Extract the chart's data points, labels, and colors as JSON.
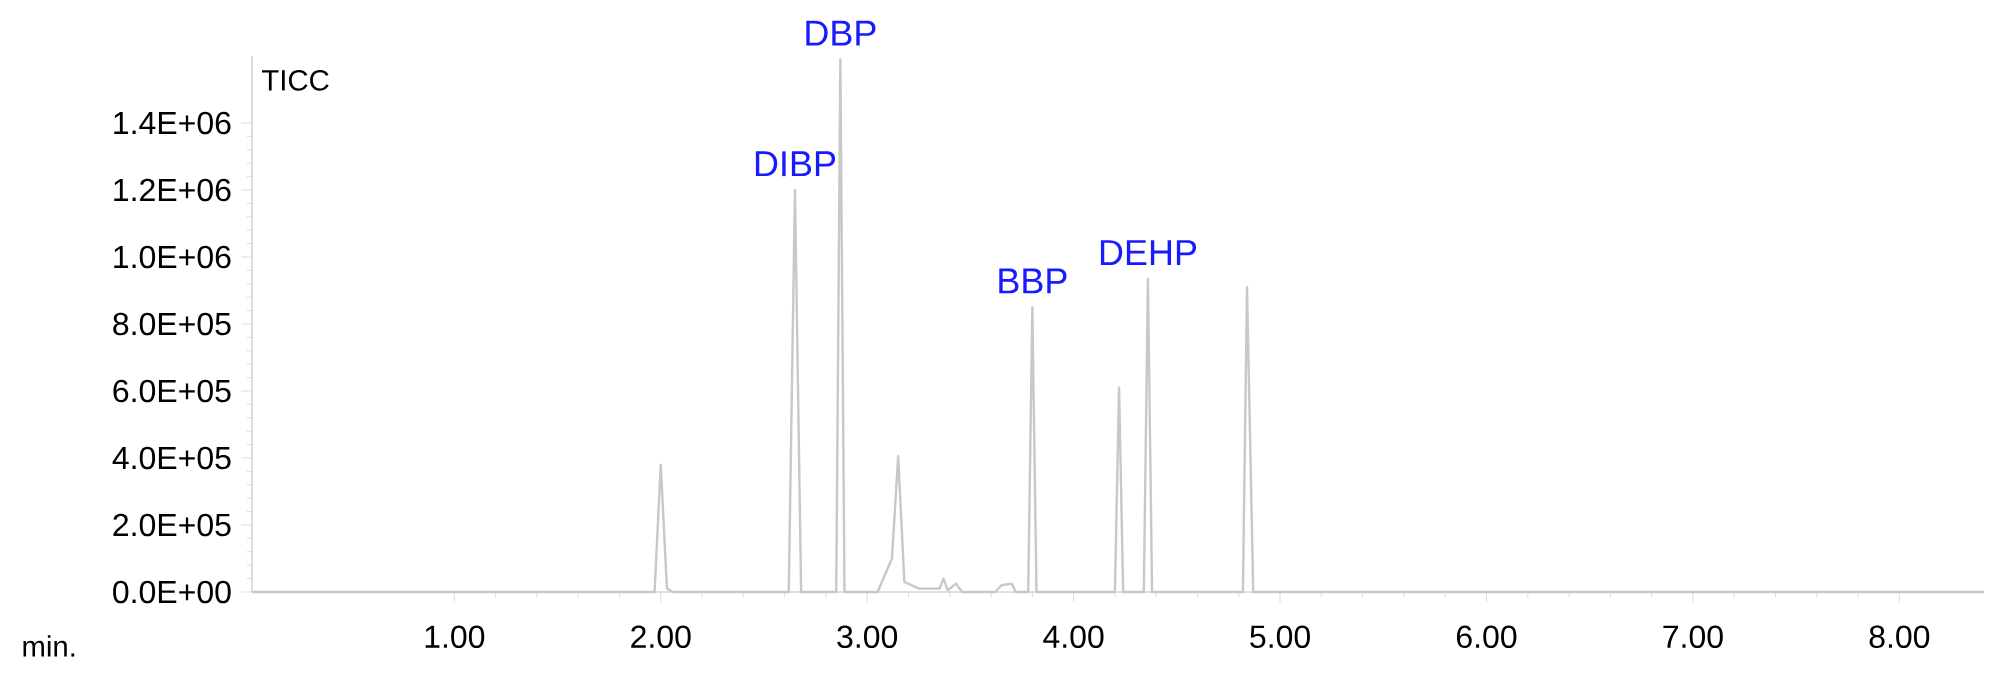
{
  "chart_data": {
    "type": "line",
    "xlabel": "min.",
    "annotations": [
      "TICC",
      {
        "text": "DIBP",
        "x": 2.65,
        "y": 1200000
      },
      {
        "text": "DBP",
        "x": 2.87,
        "y": 1590000
      },
      {
        "text": "BBP",
        "x": 3.8,
        "y": 850000
      },
      {
        "text": "DEHP",
        "x": 4.36,
        "y": 935000
      }
    ],
    "series": [
      {
        "color": "#c8c8c8",
        "x": [
          0.02,
          1.97,
          2.0,
          2.03,
          2.06,
          2.62,
          2.65,
          2.68,
          2.85,
          2.87,
          2.89,
          3.05,
          3.12,
          3.15,
          3.18,
          3.25,
          3.35,
          3.37,
          3.39,
          3.43,
          3.46,
          3.62,
          3.65,
          3.7,
          3.72,
          3.78,
          3.8,
          3.82,
          4.2,
          4.22,
          4.24,
          4.34,
          4.36,
          4.38,
          4.82,
          4.84,
          4.87,
          8.41
        ],
        "values": [
          0,
          0,
          380000,
          10000,
          0,
          0,
          1200000,
          0,
          0,
          1590000,
          0,
          0,
          100000,
          405000,
          30000,
          10000,
          10000,
          40000,
          5000,
          25000,
          0,
          0,
          20000,
          25000,
          0,
          0,
          850000,
          0,
          0,
          610000,
          0,
          0,
          935000,
          0,
          0,
          910000,
          0,
          0
        ]
      }
    ],
    "xlim": [
      0.02,
      8.41
    ],
    "ylim": [
      0,
      1600000
    ],
    "xticks": [
      {
        "value": 1,
        "label": "1.00"
      },
      {
        "value": 2,
        "label": "2.00"
      },
      {
        "value": 3,
        "label": "3.00"
      },
      {
        "value": 4,
        "label": "4.00"
      },
      {
        "value": 5,
        "label": "5.00"
      },
      {
        "value": 6,
        "label": "6.00"
      },
      {
        "value": 7,
        "label": "7.00"
      },
      {
        "value": 8,
        "label": "8.00"
      }
    ],
    "yticks": [
      {
        "value": 0,
        "label": "0.0E+00"
      },
      {
        "value": 200000,
        "label": "2.0E+05"
      },
      {
        "value": 400000,
        "label": "4.0E+05"
      },
      {
        "value": 600000,
        "label": "6.0E+05"
      },
      {
        "value": 800000,
        "label": "8.0E+05"
      },
      {
        "value": 1000000,
        "label": "1.0E+06"
      },
      {
        "value": 1200000,
        "label": "1.2E+06"
      },
      {
        "value": 1400000,
        "label": "1.4E+06"
      }
    ]
  }
}
